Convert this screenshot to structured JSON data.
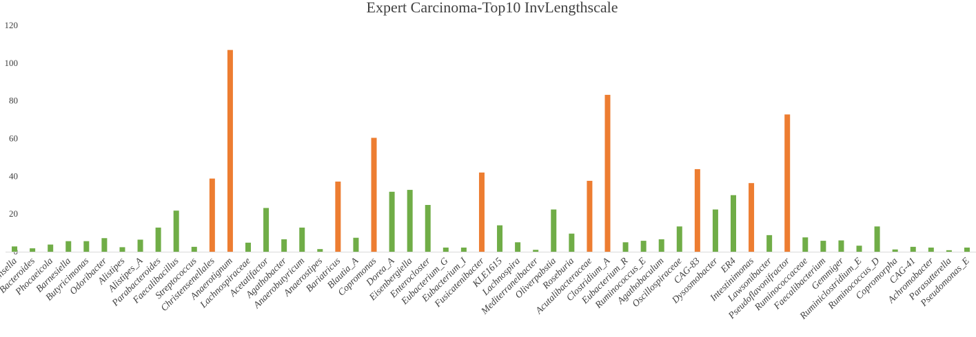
{
  "chart_data": {
    "type": "bar",
    "title": "Expert Carcinoma-Top10 InvLengthscale",
    "xlabel": "",
    "ylabel": "",
    "ylim": [
      0,
      120
    ],
    "yticks": [
      0,
      20,
      40,
      60,
      80,
      100,
      120
    ],
    "grid": false,
    "legend": "none",
    "colors": {
      "top10": "#ED7D31",
      "other": "#70AD47",
      "text": "#404040"
    },
    "categories": [
      "Collinsella",
      "Bacteroides",
      "Phocaeicola",
      "Barnesiella",
      "Butyricimonas",
      "Odoribacter",
      "Alistipes",
      "Alistipes_A",
      "Parabacteroides",
      "Faecalibacillus",
      "Streptococcus",
      "Christensenellales",
      "Anaerotignum",
      "Lachnospiraceae",
      "Acetatifactor",
      "Agathobacter",
      "Anaerobutyricum",
      "Anaerostipes",
      "Bariatricus",
      "Blautia_A",
      "Copromonas",
      "Dorea_A",
      "Eisenbergiella",
      "Enterocloster",
      "Eubacterium_G",
      "Eubacterium_I",
      "Fusicatenibacter",
      "KLE1615",
      "Lachnospira",
      "Mediterraneibacter",
      "Oliverpabstia",
      "Roseburia",
      "Acutalibacteraceae",
      "Clostridium_A",
      "Eubacterium_R",
      "Ruminococcus_E",
      "Agathobaculum",
      "Oscillospiraceae",
      "CAG-83",
      "Dysosmobacter",
      "ER4",
      "Intestinimonas",
      "Lawsonibacter",
      "Pseudoflavonifractor",
      "Ruminococcaceae",
      "Faecalibacterium",
      "Gemmiger",
      "Ruminiclostridium_E",
      "Ruminococcus_D",
      "Copromorpha",
      "CAG-41",
      "Achromobacter",
      "Parasutterella",
      "Pseudomonas_E"
    ],
    "values": [
      2.8,
      1.8,
      3.8,
      5.6,
      5.6,
      7.2,
      2.4,
      6.4,
      12.8,
      21.8,
      2.6,
      38.8,
      107,
      4.8,
      23.2,
      6.6,
      12.8,
      1.4,
      37.2,
      7.4,
      60.4,
      31.8,
      32.8,
      24.8,
      2.2,
      2.2,
      42,
      14,
      5,
      1,
      22.4,
      9.6,
      37.6,
      83.2,
      5,
      5.8,
      6.6,
      13.4,
      43.8,
      22.4,
      30,
      36.4,
      8.8,
      72.8,
      7.6,
      5.8,
      6,
      3.2,
      13.4,
      1.2,
      2.6,
      2.2,
      0.8,
      2.2
    ],
    "top10": [
      false,
      false,
      false,
      false,
      false,
      false,
      false,
      false,
      false,
      false,
      false,
      true,
      true,
      false,
      false,
      false,
      false,
      false,
      true,
      false,
      true,
      false,
      false,
      false,
      false,
      false,
      true,
      false,
      false,
      false,
      false,
      false,
      true,
      true,
      false,
      false,
      false,
      false,
      true,
      false,
      false,
      true,
      false,
      true,
      false,
      false,
      false,
      false,
      false,
      false,
      false,
      false,
      false,
      false
    ]
  }
}
